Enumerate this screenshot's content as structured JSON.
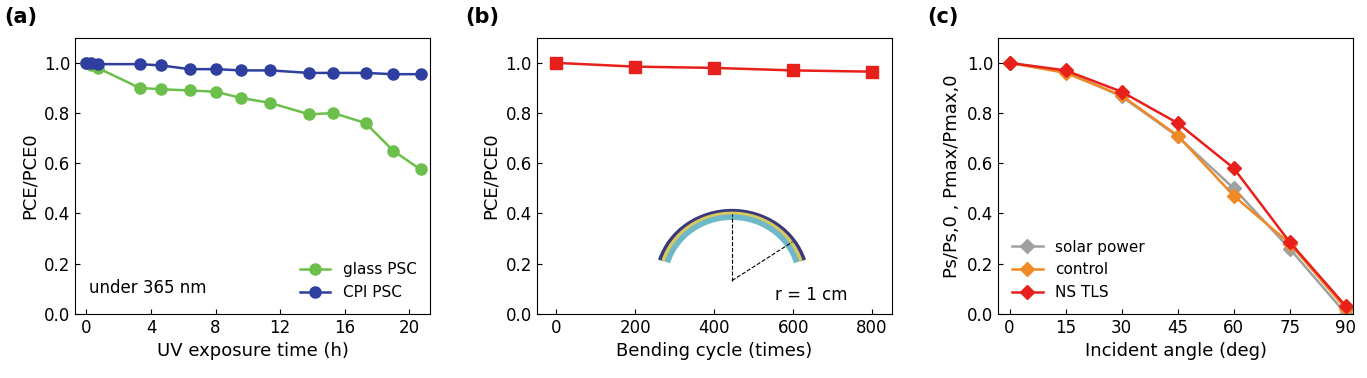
{
  "chart_data": [
    {
      "type": "line",
      "title": "(a)",
      "x_label": "UV exposure time (h)",
      "y_label": "PCE/PCE0",
      "xlim": [
        -0.7,
        21.3
      ],
      "ylim": [
        0,
        1.1
      ],
      "xticks": [
        0,
        4,
        8,
        12,
        16,
        20
      ],
      "yticks": [
        {
          "value": 0,
          "label": "0.0"
        },
        0.2,
        0.4,
        0.6,
        0.8,
        {
          "value": 1,
          "label": "1.0"
        }
      ],
      "legend": "lower right",
      "marker": "circle",
      "annotations": [
        "under 365 nm"
      ],
      "x": [
        0,
        0.3,
        0.7,
        3.3,
        4.6,
        6.4,
        8.0,
        9.6,
        11.4,
        13.8,
        15.3,
        17.3,
        19.0,
        20.7
      ],
      "series": [
        {
          "name": "glass PSC",
          "color": "#6cbf4a",
          "values": [
            1.0,
            0.99,
            0.98,
            0.9,
            0.895,
            0.89,
            0.885,
            0.86,
            0.84,
            0.795,
            0.8,
            0.76,
            0.65,
            0.575
          ]
        },
        {
          "name": "CPI PSC",
          "color": "#2e3fa0",
          "values": [
            1.0,
            1.0,
            0.995,
            0.995,
            0.99,
            0.975,
            0.975,
            0.97,
            0.97,
            0.96,
            0.96,
            0.96,
            0.955,
            0.955
          ]
        }
      ]
    },
    {
      "type": "line",
      "title": "(b)",
      "x_label": "Bending cycle (times)",
      "y_label": "PCE/PCE0",
      "xlim": [
        -50,
        850
      ],
      "ylim": [
        0,
        1.1
      ],
      "xticks": [
        0,
        200,
        400,
        600,
        800
      ],
      "yticks": [
        {
          "value": 0,
          "label": "0.0"
        },
        0.2,
        0.4,
        0.6,
        0.8,
        {
          "value": 1,
          "label": "1.0"
        }
      ],
      "marker": "square",
      "annotations": [
        "r = 1 cm"
      ],
      "x": [
        0,
        200,
        400,
        600,
        800
      ],
      "series": [
        {
          "color": "#e8201c",
          "values": [
            1.0,
            0.985,
            0.98,
            0.97,
            0.965
          ]
        }
      ]
    },
    {
      "type": "line",
      "title": "(c)",
      "x_label": "Incident angle (deg)",
      "y_label": "Ps/Ps,0 , Pmax/Pmax,0",
      "xlim": [
        -3,
        92
      ],
      "ylim": [
        0,
        1.1
      ],
      "xticks": [
        0,
        15,
        30,
        45,
        60,
        75,
        90
      ],
      "yticks": [
        {
          "value": 0,
          "label": "0.0"
        },
        0.2,
        0.4,
        0.6,
        0.8,
        {
          "value": 1,
          "label": "1.0"
        }
      ],
      "legend": "lower left",
      "marker": "diamond",
      "x": [
        0,
        15,
        30,
        45,
        60,
        75,
        90
      ],
      "series": [
        {
          "name": "solar power",
          "color": "#a0a0a0",
          "values": [
            1.0,
            0.966,
            0.866,
            0.707,
            0.5,
            0.259,
            0.0
          ]
        },
        {
          "name": "control",
          "color": "#f08a24",
          "values": [
            1.0,
            0.96,
            0.87,
            0.71,
            0.47,
            0.28,
            0.02
          ]
        },
        {
          "name": "NS TLS",
          "color": "#e8201c",
          "values": [
            1.0,
            0.97,
            0.885,
            0.76,
            0.58,
            0.285,
            0.03
          ]
        }
      ]
    }
  ]
}
